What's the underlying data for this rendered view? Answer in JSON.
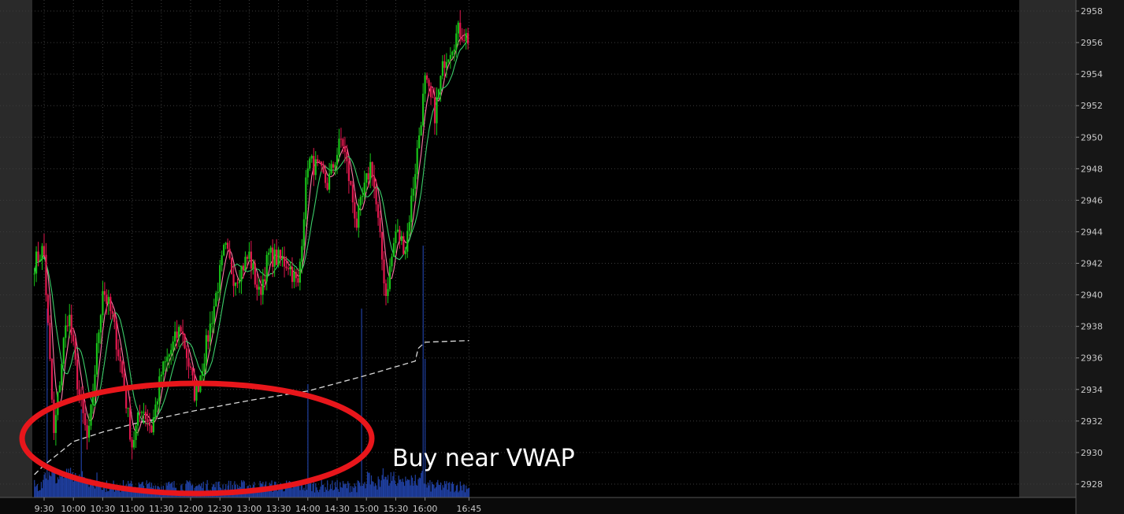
{
  "chart_data": {
    "type": "candlestick",
    "title": "",
    "xlabel": "",
    "ylabel": "",
    "ylim": [
      2927,
      2958.5
    ],
    "y_ticks": [
      "2928",
      "2930",
      "2932",
      "2934",
      "2936",
      "2938",
      "2940",
      "2942",
      "2944",
      "2946",
      "2948",
      "2950",
      "2952",
      "2954",
      "2956",
      "2958"
    ],
    "x_ticks": [
      "9:30",
      "10:00",
      "10:30",
      "11:00",
      "11:30",
      "12:00",
      "12:30",
      "13:00",
      "13:30",
      "14:00",
      "14:30",
      "15:00",
      "15:30",
      "16:00",
      "16:45"
    ],
    "grid": true,
    "extended_hours_shaded": true,
    "price_path": [
      {
        "t": "9:20",
        "price": 2942.0
      },
      {
        "t": "9:28",
        "price": 2942.8
      },
      {
        "t": "9:30",
        "price": 2942.5
      },
      {
        "t": "9:40",
        "price": 2931.0
      },
      {
        "t": "9:50",
        "price": 2937.0
      },
      {
        "t": "9:55",
        "price": 2939.0
      },
      {
        "t": "10:05",
        "price": 2934.0
      },
      {
        "t": "10:15",
        "price": 2930.5
      },
      {
        "t": "10:30",
        "price": 2940.5
      },
      {
        "t": "10:40",
        "price": 2938.5
      },
      {
        "t": "10:50",
        "price": 2935.0
      },
      {
        "t": "11:00",
        "price": 2930.5
      },
      {
        "t": "11:10",
        "price": 2933.0
      },
      {
        "t": "11:20",
        "price": 2931.5
      },
      {
        "t": "11:30",
        "price": 2935.0
      },
      {
        "t": "11:50",
        "price": 2938.0
      },
      {
        "t": "12:05",
        "price": 2933.5
      },
      {
        "t": "12:20",
        "price": 2938.0
      },
      {
        "t": "12:35",
        "price": 2943.0
      },
      {
        "t": "12:45",
        "price": 2941.0
      },
      {
        "t": "13:00",
        "price": 2942.5
      },
      {
        "t": "13:10",
        "price": 2940.0
      },
      {
        "t": "13:20",
        "price": 2942.5
      },
      {
        "t": "13:40",
        "price": 2942.0
      },
      {
        "t": "13:50",
        "price": 2940.5
      },
      {
        "t": "14:00",
        "price": 2948.5
      },
      {
        "t": "14:10",
        "price": 2948.0
      },
      {
        "t": "14:20",
        "price": 2947.0
      },
      {
        "t": "14:35",
        "price": 2950.0
      },
      {
        "t": "14:50",
        "price": 2944.5
      },
      {
        "t": "15:05",
        "price": 2948.5
      },
      {
        "t": "15:20",
        "price": 2940.0
      },
      {
        "t": "15:30",
        "price": 2944.0
      },
      {
        "t": "15:40",
        "price": 2943.0
      },
      {
        "t": "15:50",
        "price": 2948.0
      },
      {
        "t": "16:00",
        "price": 2953.5
      },
      {
        "t": "16:10",
        "price": 2951.5
      },
      {
        "t": "16:20",
        "price": 2955.0
      },
      {
        "t": "16:35",
        "price": 2956.8
      },
      {
        "t": "16:45",
        "price": 2956.2
      }
    ],
    "vwap": [
      {
        "t": "9:20",
        "value": 2928.6
      },
      {
        "t": "9:30",
        "value": 2929.2
      },
      {
        "t": "10:00",
        "value": 2930.7
      },
      {
        "t": "10:30",
        "value": 2931.3
      },
      {
        "t": "11:00",
        "value": 2931.8
      },
      {
        "t": "11:30",
        "value": 2932.2
      },
      {
        "t": "12:00",
        "value": 2932.6
      },
      {
        "t": "13:00",
        "value": 2933.3
      },
      {
        "t": "14:00",
        "value": 2933.9
      },
      {
        "t": "15:00",
        "value": 2934.9
      },
      {
        "t": "15:50",
        "value": 2935.8
      },
      {
        "t": "15:53",
        "value": 2936.6
      },
      {
        "t": "16:00",
        "value": 2937.0
      },
      {
        "t": "16:45",
        "value": 2937.1
      }
    ],
    "volume_spikes": [
      {
        "t": "9:33",
        "value": 0.75
      },
      {
        "t": "10:08",
        "value": 0.35
      },
      {
        "t": "14:00",
        "value": 0.45
      },
      {
        "t": "14:55",
        "value": 0.75
      },
      {
        "t": "15:58",
        "value": 1.0
      },
      {
        "t": "16:00",
        "value": 0.55
      }
    ],
    "annotation": {
      "text": "Buy near VWAP"
    }
  }
}
